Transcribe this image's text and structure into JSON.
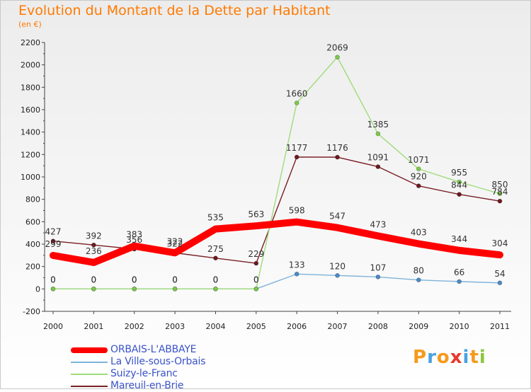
{
  "header": {
    "title": "Evolution du Montant de la Dette par Habitant",
    "subtitle": "(en €)"
  },
  "logo": {
    "text": "Proxiti",
    "colors": [
      "#f59a1b",
      "#4aa3df",
      "#f59a1b",
      "#e63a2e",
      "#4aa3df",
      "#f59a1b",
      "#8cc63f"
    ]
  },
  "chart_data": {
    "type": "line",
    "x": [
      "2000",
      "2001",
      "2002",
      "2003",
      "2004",
      "2005",
      "2006",
      "2007",
      "2008",
      "2009",
      "2010",
      "2011"
    ],
    "ylim": [
      -200,
      2200
    ],
    "yticks": [
      "-200",
      "0",
      "200",
      "400",
      "600",
      "800",
      "1000",
      "1200",
      "1400",
      "1600",
      "1800",
      "2000",
      "2200"
    ],
    "grid": false,
    "legend_position": "bottom-left",
    "series": [
      {
        "name": "Mareuil-en-Brie",
        "color": "#7a1f24",
        "marker": "#6b1a1e",
        "values": [
          427,
          392,
          356,
          322,
          275,
          229,
          1177,
          1176,
          1091,
          920,
          844,
          784
        ],
        "labels": [
          "427",
          "392",
          "356",
          "322",
          "275",
          "229",
          "1177",
          "1176",
          "1091",
          "920",
          "844",
          "784"
        ]
      },
      {
        "name": "La Ville-sous-Orbais",
        "color": "#7fb3d9",
        "marker": "#4a8ac4",
        "values": [
          0,
          0,
          0,
          0,
          0,
          0,
          133,
          120,
          107,
          80,
          66,
          54
        ],
        "labels": [
          "0",
          "0",
          "0",
          "0",
          "0",
          "0",
          "133",
          "120",
          "107",
          "80",
          "66",
          "54"
        ]
      },
      {
        "name": "Suizy-le-Franc",
        "color": "#9fdc7a",
        "marker": "#7cc84a",
        "values": [
          0,
          0,
          0,
          0,
          0,
          0,
          1660,
          2069,
          1385,
          1071,
          955,
          850
        ],
        "labels": [
          "0",
          "0",
          "0",
          "0",
          "0",
          "0",
          "1660",
          "2069",
          "1385",
          "1071",
          "955",
          "850"
        ]
      },
      {
        "name": "ORBAIS-L'ABBAYE",
        "color": "#ff0000",
        "values": [
          299,
          236,
          383,
          322,
          535,
          563,
          598,
          547,
          473,
          403,
          344,
          304
        ],
        "labels": [
          "299",
          "236",
          "383",
          "322",
          "535",
          "563",
          "598",
          "547",
          "473",
          "403",
          "344",
          "304"
        ]
      }
    ],
    "legend": [
      "ORBAIS-L'ABBAYE",
      "La Ville-sous-Orbais",
      "Suizy-le-Franc",
      "Mareuil-en-Brie"
    ]
  }
}
